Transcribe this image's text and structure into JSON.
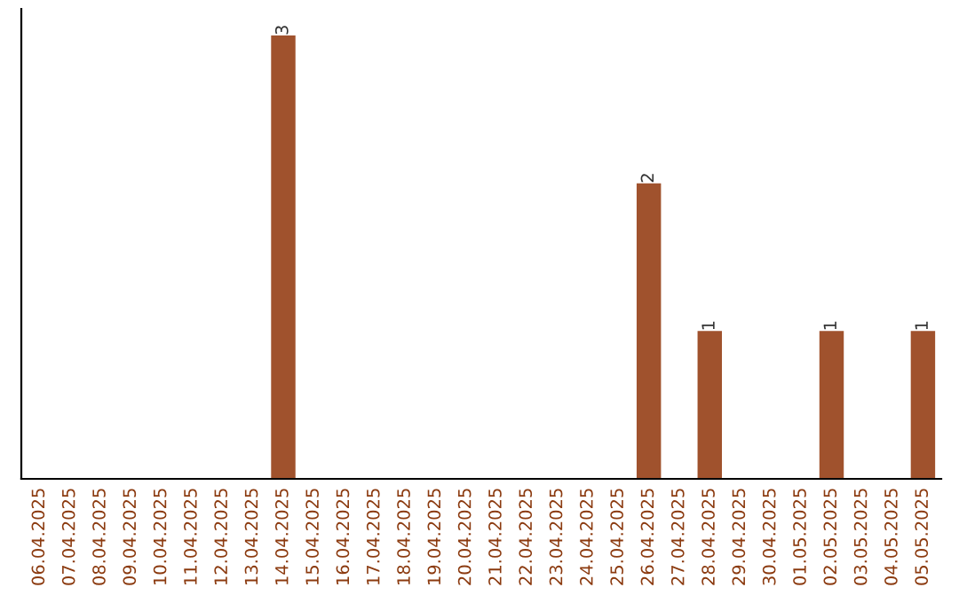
{
  "chart_data": {
    "type": "bar",
    "categories": [
      "06.04.2025",
      "07.04.2025",
      "08.04.2025",
      "09.04.2025",
      "10.04.2025",
      "11.04.2025",
      "12.04.2025",
      "13.04.2025",
      "14.04.2025",
      "15.04.2025",
      "16.04.2025",
      "17.04.2025",
      "18.04.2025",
      "19.04.2025",
      "20.04.2025",
      "21.04.2025",
      "22.04.2025",
      "23.04.2025",
      "24.04.2025",
      "25.04.2025",
      "26.04.2025",
      "27.04.2025",
      "28.04.2025",
      "29.04.2025",
      "30.04.2025",
      "01.05.2025",
      "02.05.2025",
      "03.05.2025",
      "04.05.2025",
      "05.05.2025"
    ],
    "values": [
      0,
      0,
      0,
      0,
      0,
      0,
      0,
      0,
      3,
      0,
      0,
      0,
      0,
      0,
      0,
      0,
      0,
      0,
      0,
      0,
      2,
      0,
      1,
      0,
      0,
      0,
      1,
      0,
      0,
      1
    ],
    "value_labels": [
      null,
      null,
      null,
      null,
      null,
      null,
      null,
      null,
      "3",
      null,
      null,
      null,
      null,
      null,
      null,
      null,
      null,
      null,
      null,
      null,
      "2",
      null,
      "1",
      null,
      null,
      null,
      "1",
      null,
      null,
      "1"
    ],
    "color": "#a0522d",
    "tick_labels": "x",
    "grid": false,
    "legend": false
  }
}
